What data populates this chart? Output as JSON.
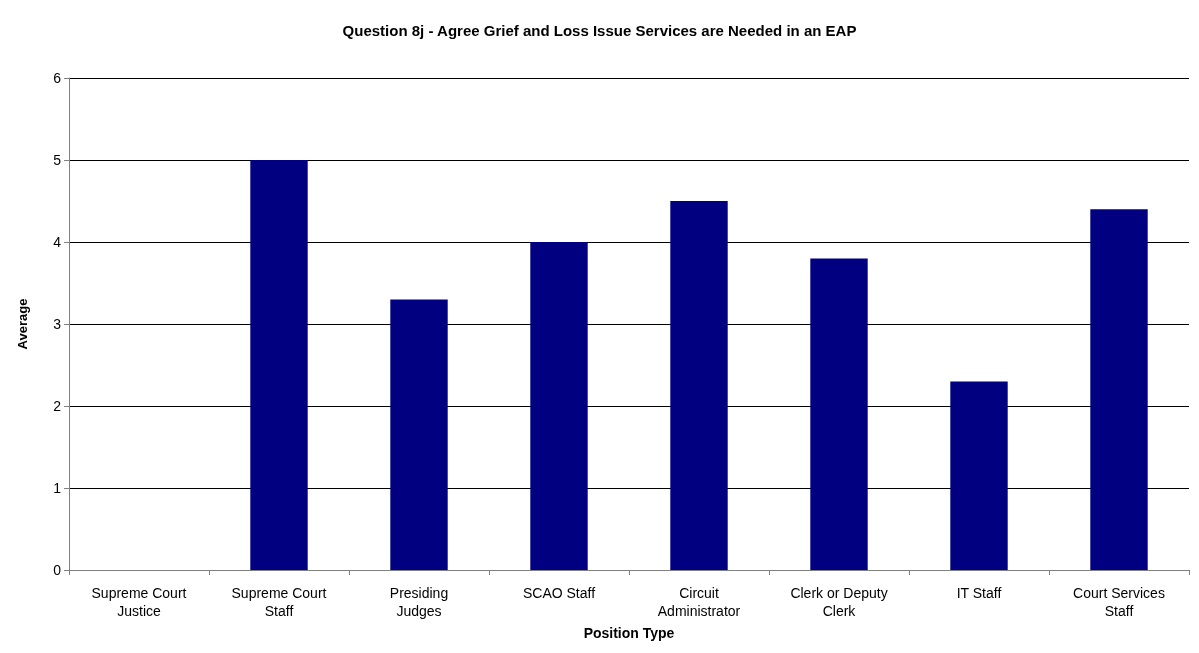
{
  "chart_data": {
    "type": "bar",
    "title": "Question 8j - Agree Grief and Loss Issue Services are Needed in an EAP",
    "xlabel": "Position Type",
    "ylabel": "Average",
    "categories": [
      "Supreme Court Justice",
      "Supreme Court Staff",
      "Presiding Judges",
      "SCAO Staff",
      "Circuit Administrator",
      "Clerk or Deputy Clerk",
      "IT Staff",
      "Court Services Staff"
    ],
    "values": [
      0,
      5,
      3.3,
      4,
      4.5,
      3.8,
      2.3,
      4.4
    ],
    "color": "#000080",
    "ylim": [
      0,
      6
    ],
    "yticks": [
      0,
      1,
      2,
      3,
      4,
      5,
      6
    ],
    "grid": "y"
  }
}
